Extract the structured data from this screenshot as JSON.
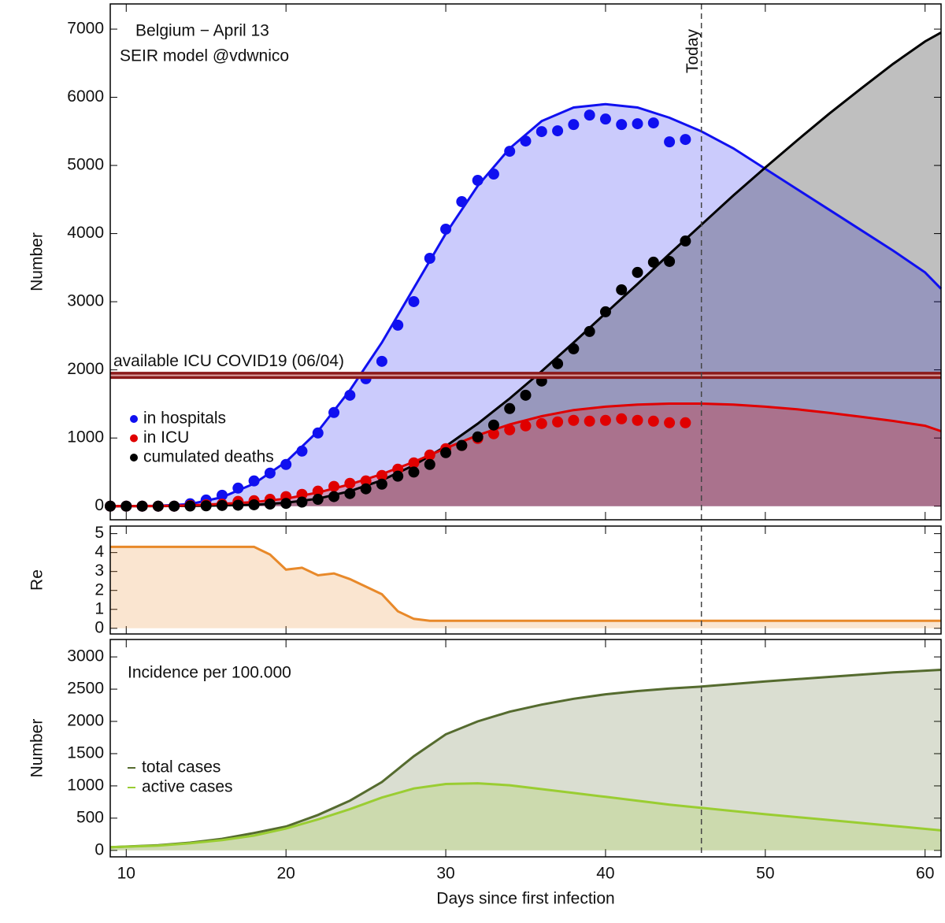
{
  "chart_data": [
    {
      "type": "scatter",
      "annotations": [
        "Belgium − April 13",
        "SEIR model @vdwnico"
      ],
      "ylabel": "Number",
      "xlim": [
        9,
        61
      ],
      "ylim": [
        -200,
        7370
      ],
      "yticks": [
        0,
        1000,
        2000,
        3000,
        4000,
        5000,
        6000,
        7000
      ],
      "x": [
        9,
        10,
        11,
        12,
        13,
        14,
        15,
        16,
        17,
        18,
        19,
        20,
        21,
        22,
        23,
        24,
        25,
        26,
        27,
        28,
        29,
        30,
        31,
        32,
        33,
        34,
        35,
        36,
        37,
        38,
        39,
        40,
        41,
        42,
        43,
        44,
        45
      ],
      "series": [
        {
          "name": "in hospitals",
          "color": "#1010f0",
          "values": [
            0,
            0,
            0,
            0,
            0,
            35,
            90,
            160,
            265,
            370,
            485,
            612,
            808,
            1074,
            1374,
            1628,
            1870,
            2125,
            2656,
            3002,
            3637,
            4065,
            4469,
            4781,
            4873,
            5208,
            5358,
            5497,
            5508,
            5600,
            5739,
            5681,
            5600,
            5612,
            5624,
            5346,
            5381
          ]
        },
        {
          "name": "in ICU",
          "color": "#e00000",
          "values": [
            0,
            0,
            0,
            0,
            0,
            10,
            20,
            30,
            70,
            80,
            100,
            140,
            173,
            220,
            290,
            335,
            370,
            450,
            543,
            635,
            750,
            843,
            890,
            993,
            1062,
            1120,
            1178,
            1212,
            1236,
            1259,
            1247,
            1259,
            1282,
            1259,
            1247,
            1224,
            1224
          ]
        },
        {
          "name": "cumulated deaths",
          "color": "#000000",
          "values": [
            0,
            0,
            0,
            0,
            0,
            2,
            5,
            10,
            14,
            20,
            30,
            40,
            60,
            100,
            140,
            185,
            254,
            323,
            440,
            500,
            612,
            785,
            890,
            1016,
            1190,
            1432,
            1628,
            1836,
            2090,
            2309,
            2563,
            2852,
            3175,
            3430,
            3580,
            3591,
            3891
          ]
        }
      ],
      "curves": [
        {
          "color": "#1010f0",
          "x": [
            9,
            12,
            14,
            16,
            18,
            20,
            22,
            24,
            26,
            28,
            30,
            32,
            34,
            36,
            38,
            40,
            42,
            44,
            46,
            48,
            50,
            52,
            54,
            56,
            58,
            60,
            61
          ],
          "values": [
            0,
            5,
            30,
            130,
            330,
            650,
            1100,
            1700,
            2400,
            3200,
            4000,
            4700,
            5250,
            5650,
            5850,
            5900,
            5850,
            5700,
            5500,
            5250,
            4950,
            4650,
            4350,
            4050,
            3750,
            3430,
            3190
          ]
        },
        {
          "color": "#000000",
          "x": [
            9,
            12,
            14,
            16,
            18,
            20,
            22,
            24,
            26,
            28,
            30,
            32,
            34,
            36,
            38,
            40,
            42,
            44,
            46,
            48,
            50,
            52,
            54,
            56,
            58,
            60,
            61
          ],
          "values": [
            0,
            1,
            3,
            10,
            20,
            50,
            110,
            220,
            380,
            600,
            880,
            1210,
            1580,
            1980,
            2400,
            2830,
            3260,
            3700,
            4130,
            4560,
            4970,
            5370,
            5760,
            6130,
            6490,
            6820,
            6950
          ]
        },
        {
          "color": "#e00000",
          "x": [
            9,
            12,
            14,
            16,
            18,
            20,
            22,
            24,
            26,
            28,
            30,
            32,
            34,
            36,
            38,
            40,
            42,
            44,
            46,
            48,
            50,
            52,
            54,
            56,
            58,
            60,
            61
          ],
          "values": [
            0,
            2,
            10,
            35,
            60,
            110,
            200,
            320,
            470,
            650,
            850,
            1040,
            1200,
            1320,
            1410,
            1460,
            1490,
            1505,
            1505,
            1490,
            1460,
            1420,
            1370,
            1310,
            1250,
            1180,
            1100
          ]
        }
      ],
      "hline": {
        "value": 1920,
        "label": "available ICU COVID19 (06/04)",
        "color": "#8b1a1a"
      },
      "vline": {
        "value": 46,
        "label": "Today"
      }
    },
    {
      "type": "line",
      "ylabel": "Re",
      "xlim": [
        9,
        61
      ],
      "ylim": [
        -0.3,
        5.4
      ],
      "yticks": [
        0,
        1,
        2,
        3,
        4,
        5
      ],
      "x": [
        9,
        18,
        19,
        20,
        21,
        22,
        23,
        24,
        25,
        26,
        27,
        28,
        29,
        61
      ],
      "series": [
        {
          "color": "#e8892a",
          "values": [
            4.3,
            4.3,
            3.9,
            3.1,
            3.2,
            2.8,
            2.9,
            2.6,
            2.2,
            1.8,
            0.9,
            0.5,
            0.4,
            0.4
          ]
        }
      ]
    },
    {
      "type": "line",
      "annotations": [
        "Incidence per 100.000"
      ],
      "ylabel": "Number",
      "xlabel": "Days since first infection",
      "xlim": [
        9,
        61
      ],
      "ylim": [
        -100,
        3270
      ],
      "yticks": [
        0,
        500,
        1000,
        1500,
        2000,
        2500,
        3000
      ],
      "xticks": [
        10,
        20,
        30,
        40,
        50,
        60
      ],
      "x": [
        9,
        12,
        14,
        16,
        18,
        20,
        22,
        24,
        26,
        28,
        30,
        32,
        34,
        36,
        38,
        40,
        42,
        44,
        46,
        48,
        50,
        54,
        58,
        61
      ],
      "series": [
        {
          "name": "total cases",
          "color": "#556b2f",
          "values": [
            50,
            80,
            120,
            180,
            270,
            370,
            550,
            770,
            1060,
            1460,
            1800,
            2000,
            2150,
            2260,
            2350,
            2420,
            2470,
            2510,
            2540,
            2580,
            2620,
            2690,
            2760,
            2800
          ]
        },
        {
          "name": "active cases",
          "color": "#9acd32",
          "values": [
            50,
            75,
            110,
            160,
            230,
            340,
            480,
            640,
            820,
            960,
            1030,
            1040,
            1010,
            950,
            890,
            830,
            770,
            710,
            660,
            610,
            560,
            470,
            380,
            310
          ]
        }
      ]
    }
  ]
}
